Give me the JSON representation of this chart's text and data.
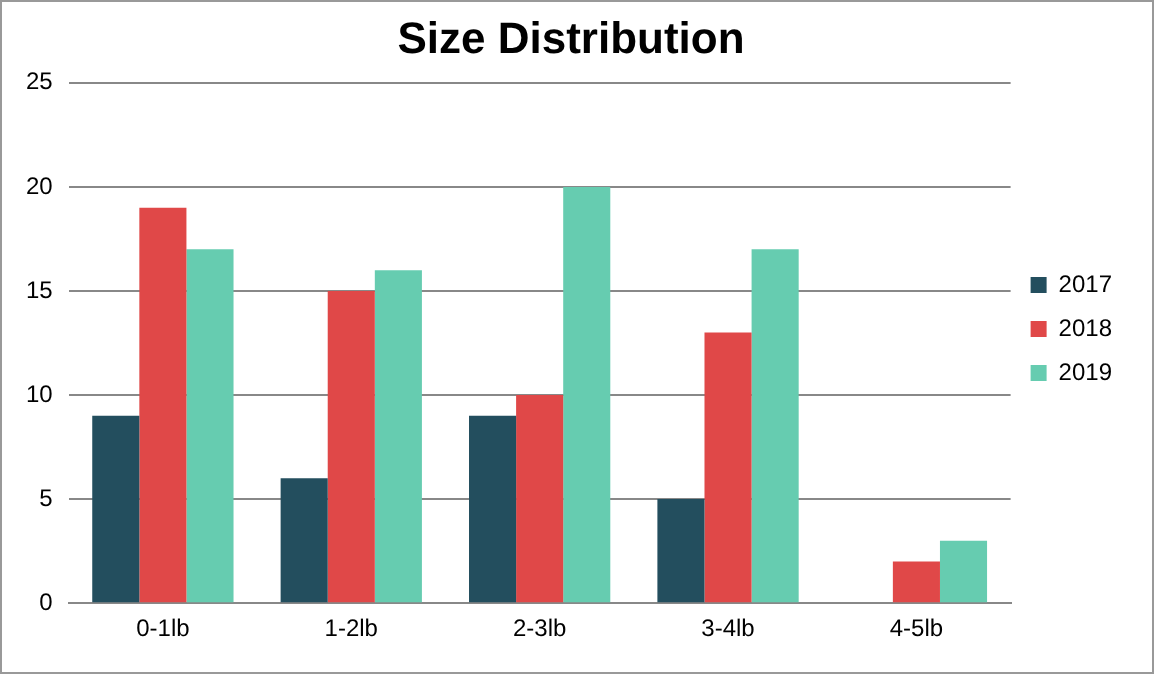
{
  "chart_data": {
    "type": "bar",
    "title": "Size Distribution",
    "categories": [
      "0-1lb",
      "1-2lb",
      "2-3lb",
      "3-4lb",
      "4-5lb"
    ],
    "series": [
      {
        "name": "2017",
        "color": "#234e5e",
        "values": [
          9,
          6,
          9,
          5,
          0
        ]
      },
      {
        "name": "2018",
        "color": "#e04848",
        "values": [
          19,
          15,
          10,
          13,
          2
        ]
      },
      {
        "name": "2019",
        "color": "#66ccb0",
        "values": [
          17,
          16,
          20,
          17,
          3
        ]
      }
    ],
    "ylim": [
      0,
      25
    ],
    "yticks": [
      0,
      5,
      10,
      15,
      20,
      25
    ],
    "grid": "y",
    "legend": "right"
  }
}
